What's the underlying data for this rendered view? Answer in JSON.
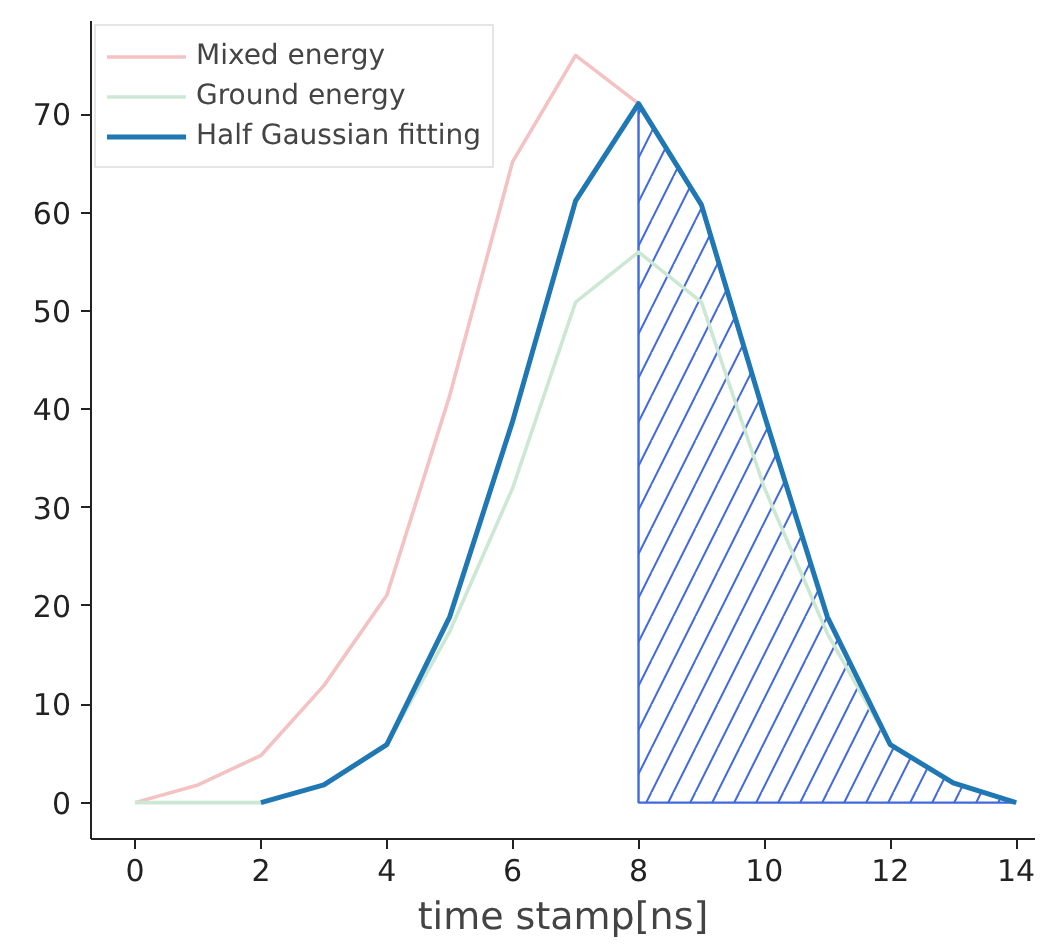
{
  "chart_data": {
    "type": "line",
    "xlabel": "time stamp[ns]",
    "xlim": [
      -0.7,
      14.3
    ],
    "xticks": [
      0,
      2,
      4,
      6,
      8,
      10,
      12,
      14
    ],
    "ylim": [
      -3.7,
      79.5
    ],
    "yticks": [
      0,
      10,
      20,
      30,
      40,
      50,
      60,
      70
    ],
    "grid": false,
    "legend": "top left",
    "line_style": "solid",
    "marker": "none",
    "series": [
      {
        "name": "Mixed energy",
        "color": "#f4c2c2",
        "x": [
          0,
          1,
          2,
          3,
          4,
          5,
          6,
          7,
          8
        ],
        "values": [
          0,
          1.8,
          4.8,
          11.9,
          21.1,
          41.4,
          65.2,
          76,
          71.1
        ]
      },
      {
        "name": "Ground energy",
        "color": "#cce8d4",
        "x": [
          0,
          1,
          2,
          3,
          4,
          5,
          6,
          7,
          8,
          9,
          10,
          11,
          12
        ],
        "values": [
          0,
          0,
          0,
          1.8,
          5.9,
          17.4,
          32,
          50.9,
          56,
          50.9,
          32,
          17.2,
          5.9
        ]
      },
      {
        "name": "Half Gaussian fitting",
        "color": "#1f77b4",
        "x": [
          2,
          3,
          4,
          5,
          6,
          7,
          8,
          9,
          10,
          11,
          12,
          13,
          14
        ],
        "values": [
          0,
          1.8,
          5.9,
          18.9,
          38.8,
          61.2,
          71.1,
          60.8,
          39.4,
          18.9,
          5.9,
          2.0,
          0
        ]
      },
      {
        "type": "area",
        "color": "#4169e1",
        "x": [
          8,
          9,
          10,
          11,
          12,
          13,
          14
        ],
        "values": [
          71.1,
          60.8,
          39.4,
          18.9,
          5.9,
          2.0,
          0
        ]
      }
    ]
  }
}
